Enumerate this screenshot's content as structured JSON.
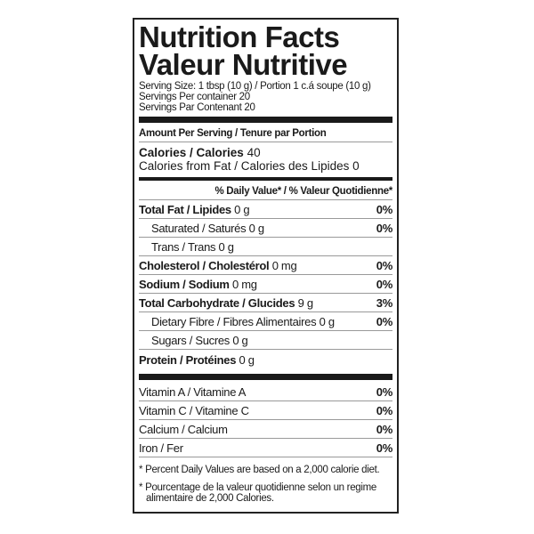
{
  "title_en": "Nutrition Facts",
  "title_fr": "Valeur Nutritive",
  "serving_size": "Serving Size: 1 tbsp (10 g) / Portion 1 c.á soupe (10 g)",
  "servings_en": "Servings Per container  20",
  "servings_fr": "Servings Par Contenant  20",
  "amount_header": "Amount Per Serving / Tenure par Portion",
  "calories_label": "Calories / Calories",
  "calories_value": "40",
  "calories_fat": "Calories from Fat / Calories des Lipides 0",
  "dv_header": "% Daily Value* / % Valeur Quotidienne*",
  "nutrients": [
    {
      "label": "Total Fat / Lipides",
      "amount": "0 g",
      "pct": "0%"
    },
    {
      "label": "Saturated / Saturés",
      "amount": "0 g",
      "pct": "0%"
    },
    {
      "label": "Trans / Trans",
      "amount": "0 g",
      "pct": ""
    },
    {
      "label": "Cholesterol / Cholestérol",
      "amount": "0 mg",
      "pct": "0%"
    },
    {
      "label": "Sodium / Sodium",
      "amount": "0 mg",
      "pct": "0%"
    },
    {
      "label": "Total Carbohydrate / Glucides",
      "amount": "9 g",
      "pct": "3%"
    },
    {
      "label": "Dietary Fibre / Fibres Alimentaires",
      "amount": "0 g",
      "pct": "0%"
    },
    {
      "label": "Sugars / Sucres",
      "amount": "0 g",
      "pct": ""
    },
    {
      "label": "Protein / Protéines",
      "amount": "0 g",
      "pct": ""
    }
  ],
  "vitamins": [
    {
      "label": "Vitamin A / Vitamine A",
      "pct": "0%"
    },
    {
      "label": "Vitamin C / Vitamine C",
      "pct": "0%"
    },
    {
      "label": "Calcium / Calcium",
      "pct": "0%"
    },
    {
      "label": "Iron / Fer",
      "pct": "0%"
    }
  ],
  "footnote_en": "* Percent Daily Values are based on a 2,000 calorie diet.",
  "footnote_fr": "* Pourcentage de la valeur quotidienne selon un regime alimentaire de 2,000 Calories."
}
